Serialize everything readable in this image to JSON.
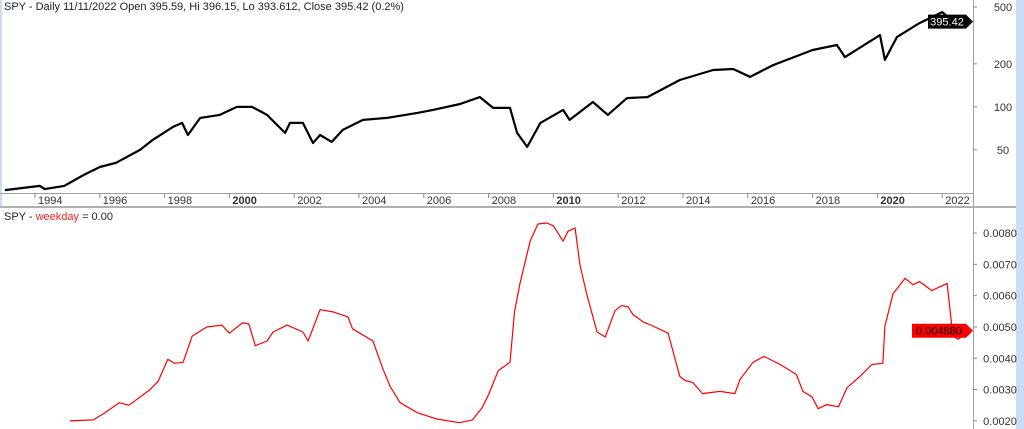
{
  "chart_data": [
    {
      "type": "line",
      "title": "SPY - Daily 11/11/2022 Open 395.59, Hi 396.15, Lo 393.612, Close 395.42 (0.2%)",
      "yscale": "log",
      "ylim": [
        24.9,
        560
      ],
      "xlim": [
        1992.92,
        2022.95
      ],
      "y_ticks": [
        50,
        100,
        200,
        500
      ],
      "x_ticks": [
        1994,
        1996,
        1998,
        2000,
        2002,
        2004,
        2006,
        2008,
        2010,
        2012,
        2014,
        2016,
        2018,
        2020,
        2022
      ],
      "x_ticks_bold": [
        2000,
        2010,
        2020
      ],
      "color": "#000000",
      "last_value_label": "395.42",
      "series": [
        {
          "x": [
            1993.07,
            1994.15,
            1994.3,
            1994.9,
            1995.5,
            1996.0,
            1996.5,
            1997.24,
            1997.64,
            1998.26,
            1998.54,
            1998.72,
            1999.1,
            1999.7,
            2000.23,
            2000.7,
            2001.16,
            2001.72,
            2001.87,
            2002.27,
            2002.58,
            2002.8,
            2003.16,
            2003.5,
            2004.12,
            2004.86,
            2005.8,
            2006.28,
            2007.12,
            2007.73,
            2008.14,
            2008.66,
            2008.88,
            2009.19,
            2009.6,
            2010.3,
            2010.5,
            2011.22,
            2011.68,
            2012.27,
            2012.9,
            2013.9,
            2014.93,
            2015.55,
            2016.07,
            2016.78,
            2018.0,
            2018.75,
            2019.0,
            2020.08,
            2020.23,
            2020.6,
            2021.3,
            2022.0,
            2022.55,
            2022.86
          ],
          "y": [
            26.1,
            27.9,
            26.5,
            27.9,
            33.3,
            37.9,
            40.5,
            49.9,
            58.7,
            72.3,
            77.1,
            63.5,
            83.6,
            87.7,
            99.8,
            99.8,
            87.7,
            65.6,
            77.1,
            77.1,
            55.8,
            63.5,
            56.8,
            68.9,
            80.9,
            83.6,
            90.6,
            95.1,
            104.7,
            117,
            98.3,
            98.3,
            65.6,
            52.4,
            77.1,
            95.1,
            80.9,
            108,
            87.7,
            115,
            117,
            154,
            181,
            184,
            162,
            196,
            250,
            271,
            223,
            318,
            213,
            308,
            386,
            461,
            362,
            395.42
          ]
        }
      ]
    },
    {
      "type": "line",
      "title_prefix": "SPY - ",
      "title_name": "weekday",
      "title_suffix": " = 0.00",
      "ylim": [
        0.00174,
        0.0088
      ],
      "xlim": [
        1992.92,
        2022.95
      ],
      "y_ticks": [
        "0.0020",
        "0.0030",
        "0.0040",
        "0.0050",
        "0.0060",
        "0.0070",
        "0.0080"
      ],
      "color": "#ff0000",
      "last_value_label": "0.004880",
      "series": [
        {
          "x": [
            1995.08,
            1995.8,
            1996.16,
            1996.6,
            1996.9,
            1997.55,
            1997.8,
            1998.1,
            1998.3,
            1998.57,
            1998.85,
            1999.3,
            1999.77,
            2000.0,
            2000.4,
            2000.6,
            2000.8,
            2001.16,
            2001.35,
            2001.78,
            2002.27,
            2002.43,
            2002.8,
            2003.2,
            2003.66,
            2003.8,
            2004.43,
            2004.74,
            2004.96,
            2005.27,
            2005.8,
            2006.4,
            2007.1,
            2007.5,
            2007.8,
            2008.0,
            2008.3,
            2008.66,
            2008.8,
            2008.97,
            2009.28,
            2009.52,
            2009.8,
            2010.0,
            2010.3,
            2010.45,
            2010.67,
            2010.82,
            2011.04,
            2011.35,
            2011.6,
            2011.9,
            2012.1,
            2012.3,
            2012.46,
            2012.77,
            2013.07,
            2013.54,
            2013.9,
            2014.06,
            2014.3,
            2014.6,
            2015.14,
            2015.6,
            2015.76,
            2016.16,
            2016.5,
            2017.0,
            2017.5,
            2017.7,
            2017.98,
            2018.17,
            2018.44,
            2018.8,
            2019.06,
            2019.46,
            2019.83,
            2020.17,
            2020.23,
            2020.48,
            2020.85,
            2021.1,
            2021.3,
            2021.68,
            2022.15,
            2022.33,
            2022.49,
            2022.86
          ],
          "y": [
            0.002,
            0.00203,
            0.00226,
            0.00258,
            0.0025,
            0.003,
            0.00326,
            0.00397,
            0.00384,
            0.00387,
            0.0047,
            0.005,
            0.00506,
            0.0048,
            0.00513,
            0.0051,
            0.0044,
            0.00455,
            0.00484,
            0.00506,
            0.00484,
            0.00455,
            0.00555,
            0.00548,
            0.00532,
            0.00494,
            0.00455,
            0.00365,
            0.0031,
            0.00258,
            0.00226,
            0.00206,
            0.00194,
            0.00203,
            0.00242,
            0.00284,
            0.00361,
            0.00387,
            0.00548,
            0.00639,
            0.00774,
            0.00829,
            0.00832,
            0.00823,
            0.00774,
            0.00806,
            0.00816,
            0.00697,
            0.006,
            0.00484,
            0.00468,
            0.00552,
            0.00568,
            0.00565,
            0.00539,
            0.00516,
            0.00503,
            0.0048,
            0.00342,
            0.00329,
            0.00323,
            0.00287,
            0.00294,
            0.00287,
            0.00332,
            0.00387,
            0.00406,
            0.0038,
            0.00348,
            0.00294,
            0.00277,
            0.00239,
            0.00252,
            0.00245,
            0.00306,
            0.00342,
            0.0038,
            0.00384,
            0.00503,
            0.00606,
            0.00655,
            0.00635,
            0.00645,
            0.00616,
            0.00639,
            0.00471,
            0.00461,
            0.00488
          ]
        }
      ]
    }
  ]
}
